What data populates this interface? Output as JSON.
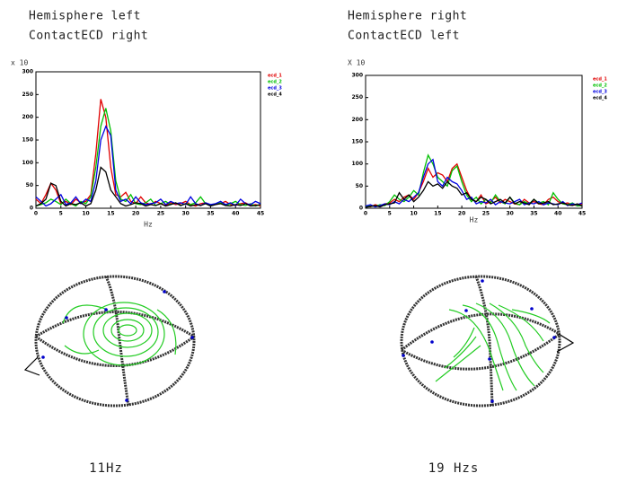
{
  "chart_data": [
    {
      "type": "line",
      "title": "Hemisphere left",
      "subtitle": "ContactECD right",
      "y_scale_label": "x 10",
      "xlabel": "Hz",
      "caption": "11Hz",
      "x": [
        0,
        1,
        2,
        3,
        4,
        5,
        6,
        7,
        8,
        9,
        10,
        11,
        12,
        13,
        14,
        15,
        16,
        17,
        18,
        19,
        20,
        21,
        22,
        23,
        24,
        25,
        26,
        27,
        28,
        29,
        30,
        31,
        32,
        33,
        34,
        35,
        36,
        37,
        38,
        39,
        40,
        41,
        42,
        43,
        44,
        45
      ],
      "xlim": [
        0,
        45
      ],
      "xticks": [
        0,
        5,
        10,
        15,
        20,
        25,
        30,
        35,
        40,
        45
      ],
      "ylim": [
        0,
        300
      ],
      "yticks": [
        0,
        50,
        100,
        150,
        200,
        250,
        300
      ],
      "series": [
        {
          "name": "ecd_1",
          "color": "#e00000",
          "values": [
            20,
            10,
            30,
            55,
            40,
            10,
            15,
            8,
            20,
            12,
            15,
            30,
            120,
            240,
            200,
            90,
            30,
            25,
            35,
            15,
            10,
            25,
            12,
            8,
            15,
            10,
            6,
            12,
            8,
            10,
            15,
            8,
            5,
            10,
            12,
            6,
            8,
            10,
            15,
            8,
            6,
            10,
            12,
            6,
            8,
            5
          ]
        },
        {
          "name": "ecd_2",
          "color": "#00c000",
          "values": [
            5,
            8,
            12,
            20,
            15,
            8,
            20,
            10,
            5,
            15,
            10,
            25,
            90,
            180,
            220,
            170,
            60,
            20,
            15,
            30,
            10,
            8,
            12,
            20,
            6,
            10,
            15,
            8,
            12,
            6,
            10,
            8,
            12,
            25,
            10,
            6,
            8,
            12,
            6,
            10,
            15,
            8,
            6,
            10,
            5,
            8
          ]
        },
        {
          "name": "ecd_3",
          "color": "#0000e0",
          "values": [
            25,
            15,
            5,
            10,
            20,
            30,
            8,
            12,
            25,
            10,
            20,
            15,
            60,
            150,
            180,
            160,
            40,
            15,
            20,
            10,
            25,
            12,
            8,
            10,
            12,
            20,
            8,
            15,
            10,
            12,
            8,
            25,
            10,
            6,
            12,
            8,
            10,
            15,
            8,
            12,
            6,
            20,
            10,
            8,
            15,
            10
          ]
        },
        {
          "name": "ecd_4",
          "color": "#000000",
          "values": [
            5,
            10,
            20,
            55,
            50,
            15,
            5,
            10,
            8,
            12,
            5,
            10,
            40,
            90,
            80,
            40,
            25,
            10,
            5,
            8,
            12,
            10,
            5,
            8,
            6,
            10,
            5,
            8,
            12,
            6,
            10,
            5,
            8,
            6,
            10,
            5,
            8,
            10,
            6,
            5,
            8,
            6,
            10,
            5,
            6,
            8
          ]
        }
      ]
    },
    {
      "type": "line",
      "title": "Hemisphere right",
      "subtitle": "ContactECD left",
      "y_scale_label": "X 10",
      "xlabel": "Hz",
      "caption": "19 Hzs",
      "x": [
        0,
        1,
        2,
        3,
        4,
        5,
        6,
        7,
        8,
        9,
        10,
        11,
        12,
        13,
        14,
        15,
        16,
        17,
        18,
        19,
        20,
        21,
        22,
        23,
        24,
        25,
        26,
        27,
        28,
        29,
        30,
        31,
        32,
        33,
        34,
        35,
        36,
        37,
        38,
        39,
        40,
        41,
        42,
        43,
        44,
        45
      ],
      "xlim": [
        0,
        45
      ],
      "xticks": [
        0,
        5,
        10,
        15,
        20,
        25,
        30,
        35,
        40,
        45
      ],
      "ylim": [
        0,
        300
      ],
      "yticks": [
        0,
        50,
        100,
        150,
        200,
        250,
        300
      ],
      "series": [
        {
          "name": "ecd_1",
          "color": "#e00000",
          "values": [
            5,
            3,
            8,
            5,
            10,
            12,
            20,
            15,
            25,
            30,
            20,
            35,
            60,
            90,
            70,
            80,
            75,
            60,
            90,
            100,
            70,
            40,
            20,
            15,
            30,
            10,
            15,
            25,
            12,
            20,
            15,
            10,
            8,
            20,
            12,
            15,
            10,
            8,
            20,
            25,
            15,
            10,
            12,
            8,
            6,
            10
          ]
        },
        {
          "name": "ecd_2",
          "color": "#00c000",
          "values": [
            3,
            5,
            4,
            8,
            6,
            15,
            30,
            20,
            15,
            25,
            40,
            30,
            80,
            120,
            100,
            70,
            60,
            50,
            85,
            95,
            60,
            30,
            15,
            25,
            10,
            20,
            12,
            30,
            15,
            10,
            25,
            12,
            8,
            15,
            10,
            20,
            12,
            15,
            8,
            35,
            20,
            10,
            8,
            12,
            5,
            6
          ]
        },
        {
          "name": "ecd_3",
          "color": "#0000e0",
          "values": [
            5,
            8,
            3,
            6,
            10,
            8,
            15,
            10,
            20,
            15,
            25,
            35,
            70,
            100,
            110,
            60,
            50,
            70,
            60,
            55,
            40,
            20,
            25,
            10,
            15,
            12,
            20,
            8,
            15,
            12,
            10,
            15,
            20,
            8,
            12,
            10,
            15,
            8,
            12,
            10,
            8,
            15,
            6,
            10,
            8,
            12
          ]
        },
        {
          "name": "ecd_4",
          "color": "#000000",
          "values": [
            2,
            4,
            6,
            3,
            8,
            10,
            12,
            35,
            20,
            30,
            15,
            25,
            40,
            60,
            50,
            55,
            45,
            60,
            50,
            45,
            30,
            35,
            20,
            15,
            25,
            20,
            10,
            15,
            20,
            12,
            25,
            10,
            15,
            12,
            8,
            20,
            10,
            12,
            15,
            8,
            10,
            12,
            8,
            6,
            10,
            5
          ]
        }
      ]
    }
  ]
}
